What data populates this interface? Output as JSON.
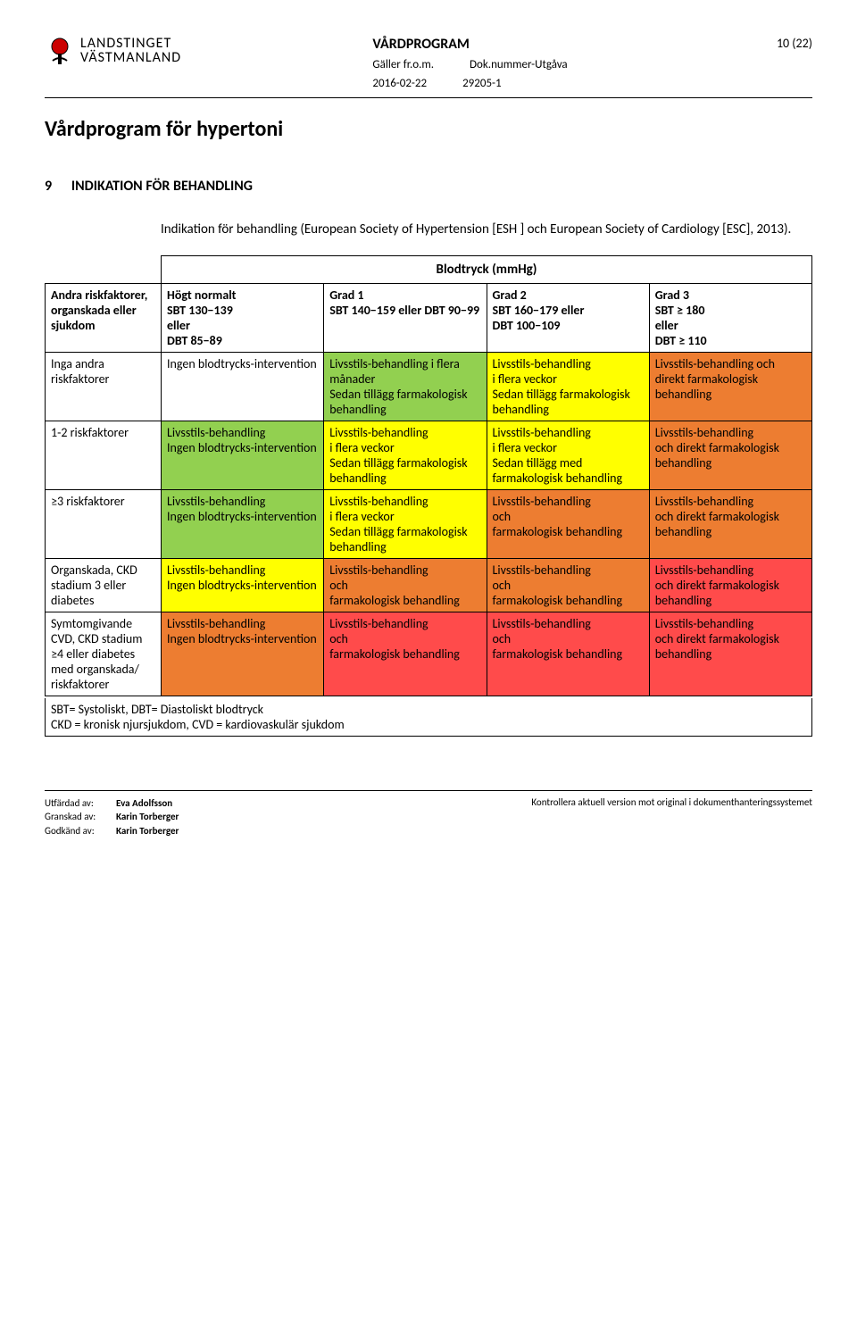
{
  "header": {
    "org_line1": "LANDSTINGET",
    "org_line2": "VÄSTMANLAND",
    "doc_type": "VÅRDPROGRAM",
    "page_label": "10 (22)",
    "meta_label1": "Gäller fr.o.m.",
    "meta_label2": "Dok.nummer-Utgåva",
    "date": "2016-02-22",
    "docnum": "29205-1"
  },
  "main_title": "Vårdprogram för hypertoni",
  "section_number": "9",
  "section_title": "INDIKATION FÖR BEHANDLING",
  "intro": "Indikation för behandling (European Society of Hypertension [ESH ] och European Society of Cardiology [ESC], 2013).",
  "bp_caption": "Blodtryck (mmHg)",
  "colors": {
    "green": "#92d050",
    "yellow": "#ffff00",
    "orange": "#ed7d31",
    "red": "#ff4b4b",
    "white": "#ffffff"
  },
  "columns": [
    {
      "label": "Andra riskfaktorer, organskada eller sjukdom"
    },
    {
      "label": "Högt normalt\nSBT 130−139\neller\nDBT 85−89"
    },
    {
      "label": "Grad 1\nSBT 140−159 eller DBT 90−99"
    },
    {
      "label": "Grad 2\nSBT 160−179 eller\nDBT 100−109"
    },
    {
      "label": "Grad 3\nSBT ≥ 180\neller\nDBT ≥ 110"
    }
  ],
  "rows": [
    {
      "label": "Inga andra riskfaktorer",
      "cells": [
        {
          "text": "Ingen blodtrycks-intervention",
          "color": "white"
        },
        {
          "text": "Livsstils-behandling i flera månader\nSedan tillägg farmakologisk behandling",
          "color": "green"
        },
        {
          "text": "Livsstils-behandling\ni flera veckor\nSedan tillägg farmakologisk behandling",
          "color": "yellow"
        },
        {
          "text": "Livsstils-behandling och direkt farmakologisk behandling",
          "color": "orange"
        }
      ]
    },
    {
      "label": "1-2 riskfaktorer",
      "cells": [
        {
          "text": "Livsstils-behandling\nIngen blodtrycks-intervention",
          "color": "green"
        },
        {
          "text": "Livsstils-behandling\ni flera veckor\nSedan tillägg farmakologisk behandling",
          "color": "yellow"
        },
        {
          "text": "Livsstils-behandling\ni flera veckor\nSedan tillägg med farmakologisk behandling",
          "color": "yellow"
        },
        {
          "text": "Livsstils-behandling\noch direkt farmakologisk behandling",
          "color": "orange"
        }
      ]
    },
    {
      "label": "≥3 riskfaktorer",
      "cells": [
        {
          "text": "Livsstils-behandling\nIngen blodtrycks-intervention",
          "color": "green"
        },
        {
          "text": "Livsstils-behandling\ni flera veckor\nSedan tillägg farmakologisk behandling",
          "color": "yellow"
        },
        {
          "text": "Livsstils-behandling\noch\nfarmakologisk behandling",
          "color": "orange"
        },
        {
          "text": "Livsstils-behandling\noch direkt farmakologisk behandling",
          "color": "orange"
        }
      ]
    },
    {
      "label": "Organskada, CKD stadium 3 eller diabetes",
      "cells": [
        {
          "text": "Livsstils-behandling\nIngen blodtrycks-intervention",
          "color": "yellow"
        },
        {
          "text": "Livsstils-behandling\noch\nfarmakologisk behandling",
          "color": "orange"
        },
        {
          "text": "Livsstils-behandling\noch\nfarmakologisk behandling",
          "color": "orange"
        },
        {
          "text": "Livsstils-behandling\noch direkt farmakologisk behandling",
          "color": "red"
        }
      ]
    },
    {
      "label": "Symtomgivande CVD, CKD stadium ≥4 eller diabetes med organskada/ riskfaktorer",
      "cells": [
        {
          "text": "Livsstils-behandling\nIngen blodtrycks-intervention",
          "color": "orange"
        },
        {
          "text": "Livsstils-behandling\noch\nfarmakologisk behandling",
          "color": "red"
        },
        {
          "text": "Livsstils-behandling\noch\nfarmakologisk behandling",
          "color": "red"
        },
        {
          "text": "Livsstils-behandling\noch direkt farmakologisk behandling",
          "color": "red"
        }
      ]
    }
  ],
  "footnote1": "SBT= Systoliskt, DBT= Diastoliskt blodtryck",
  "footnote2": "CKD = kronisk njursjukdom, CVD = kardiovaskulär sjukdom",
  "footer": {
    "utfardat_lbl": "Utfärdad av:",
    "utfardat_name": "Eva Adolfsson",
    "granskat_lbl": "Granskad av:",
    "granskat_name": "Karin Torberger",
    "godkant_lbl": "Godkänd av:",
    "godkant_name": "Karin Torberger",
    "right_note": "Kontrollera aktuell version mot original i dokumenthanteringssystemet"
  }
}
